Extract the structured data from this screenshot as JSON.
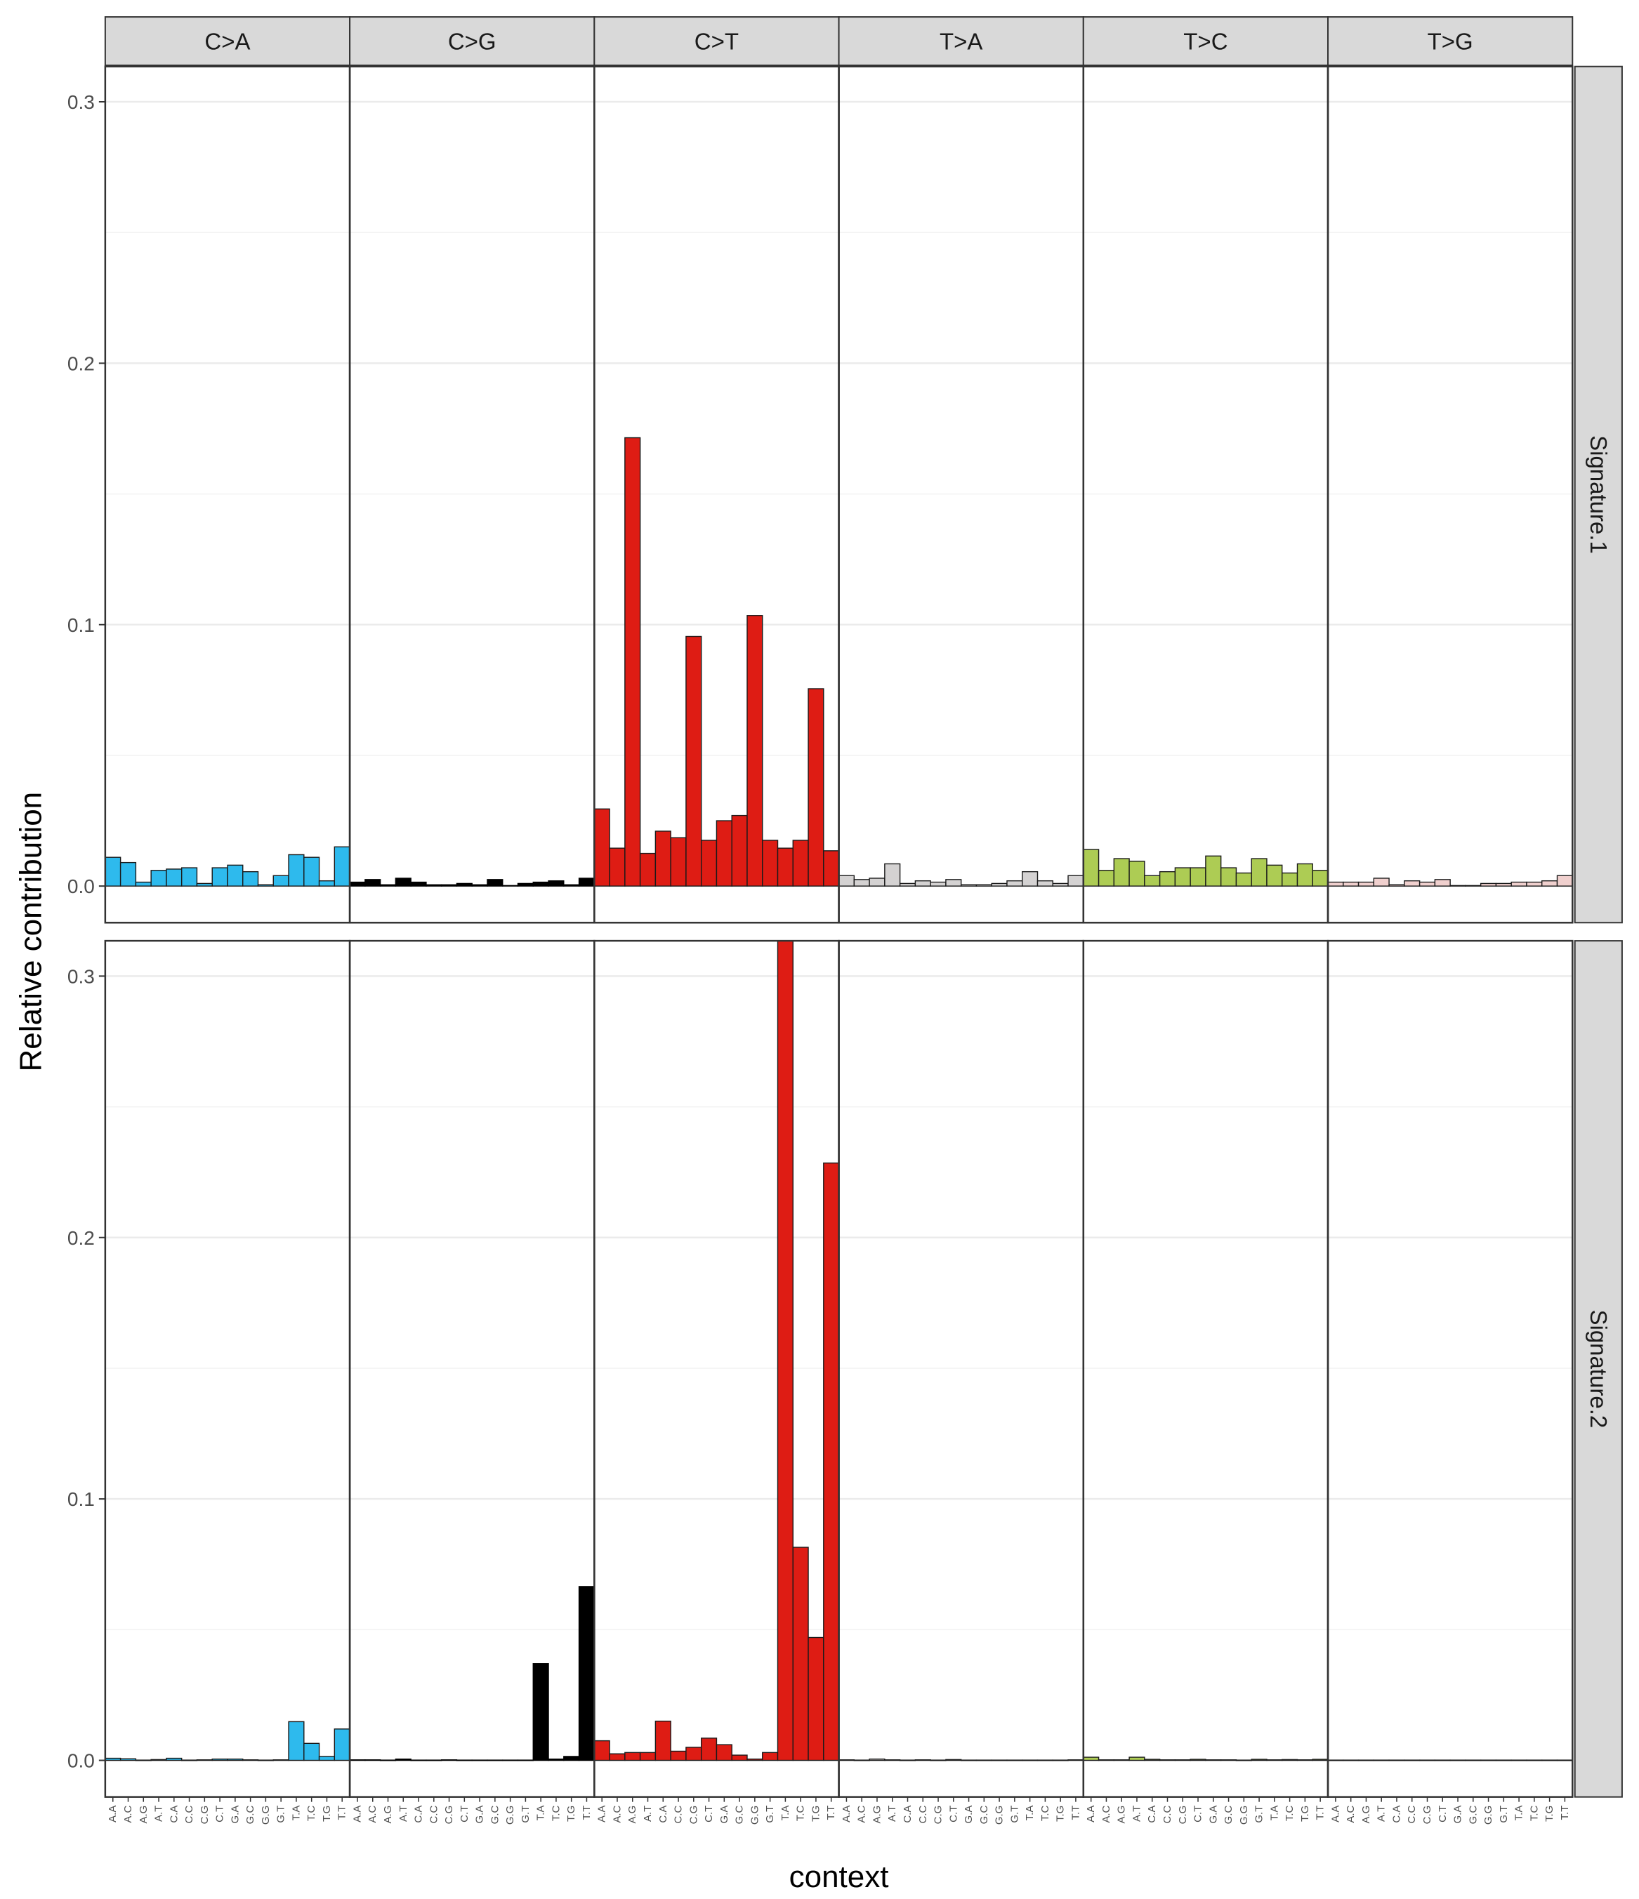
{
  "chart_data": {
    "type": "bar",
    "xlabel": "context",
    "ylabel": "Relative contribution",
    "ylim": [
      -0.014,
      0.3135
    ],
    "yticks": [
      0.0,
      0.1,
      0.2,
      0.3
    ],
    "ytick_labels": [
      "0.0",
      "0.1",
      "0.2",
      "0.3"
    ],
    "grid": true,
    "legend": "none",
    "facet_columns": [
      "C>A",
      "C>G",
      "C>T",
      "T>A",
      "T>C",
      "T>G"
    ],
    "facet_rows": [
      "Signature.1",
      "Signature.2"
    ],
    "facet_colors": {
      "C>A": "#2EBAED",
      "C>G": "#000000",
      "C>T": "#DE1C14",
      "T>A": "#D4D2D2",
      "T>C": "#ADCC54",
      "T>G": "#F0D0CE"
    },
    "categories": [
      "A.A",
      "A.C",
      "A.G",
      "A.T",
      "C.A",
      "C.C",
      "C.G",
      "C.T",
      "G.A",
      "G.C",
      "G.G",
      "G.T",
      "T.A",
      "T.C",
      "T.G",
      "T.T"
    ],
    "series": [
      {
        "name": "Signature.1",
        "facets": [
          {
            "mutation": "C>A",
            "values": [
              0.011,
              0.009,
              0.0015,
              0.006,
              0.0065,
              0.007,
              0.001,
              0.007,
              0.008,
              0.0055,
              0.0005,
              0.004,
              0.012,
              0.011,
              0.002,
              0.015
            ]
          },
          {
            "mutation": "C>G",
            "values": [
              0.0015,
              0.0025,
              0.0005,
              0.003,
              0.0015,
              0.0005,
              0.0005,
              0.001,
              0.0005,
              0.0025,
              0.0002,
              0.001,
              0.0015,
              0.002,
              0.0005,
              0.003
            ]
          },
          {
            "mutation": "C>T",
            "values": [
              0.0295,
              0.0145,
              0.1715,
              0.0125,
              0.021,
              0.0185,
              0.0955,
              0.0175,
              0.025,
              0.027,
              0.1035,
              0.0175,
              0.0145,
              0.0175,
              0.0755,
              0.0135
            ]
          },
          {
            "mutation": "T>A",
            "values": [
              0.004,
              0.0025,
              0.003,
              0.0085,
              0.001,
              0.002,
              0.0015,
              0.0025,
              0.0005,
              0.0005,
              0.001,
              0.002,
              0.0055,
              0.002,
              0.001,
              0.004
            ]
          },
          {
            "mutation": "T>C",
            "values": [
              0.014,
              0.006,
              0.0105,
              0.0095,
              0.004,
              0.0055,
              0.007,
              0.007,
              0.0115,
              0.007,
              0.005,
              0.0105,
              0.008,
              0.005,
              0.0085,
              0.006
            ]
          },
          {
            "mutation": "T>G",
            "values": [
              0.0015,
              0.0015,
              0.0015,
              0.003,
              0.0005,
              0.002,
              0.0015,
              0.0025,
              0.0002,
              0.0002,
              0.001,
              0.001,
              0.0015,
              0.0015,
              0.002,
              0.004
            ]
          }
        ]
      },
      {
        "name": "Signature.2",
        "facets": [
          {
            "mutation": "C>A",
            "values": [
              0.0008,
              0.0006,
              0.0001,
              0.0003,
              0.0008,
              0.0001,
              0.0002,
              0.0005,
              0.0005,
              0.0002,
              0.0001,
              0.0002,
              0.0148,
              0.0065,
              0.0015,
              0.012
            ]
          },
          {
            "mutation": "C>G",
            "values": [
              0.0002,
              0.0002,
              0.0001,
              0.0005,
              0.0001,
              0.0001,
              0.0002,
              0.0001,
              0.0001,
              0.0001,
              0.0001,
              0.0001,
              0.037,
              0.0005,
              0.0015,
              0.0665
            ]
          },
          {
            "mutation": "C>T",
            "values": [
              0.0075,
              0.0025,
              0.003,
              0.003,
              0.015,
              0.0035,
              0.005,
              0.0085,
              0.006,
              0.002,
              0.0005,
              0.003,
              0.3135,
              0.0815,
              0.047,
              0.2285
            ]
          },
          {
            "mutation": "T>A",
            "values": [
              0.0002,
              0.0001,
              0.0005,
              0.0002,
              0.0001,
              0.0002,
              0.0001,
              0.0003,
              0.0001,
              0.0001,
              0.0001,
              0.0001,
              0.0001,
              0.0001,
              0.0001,
              0.0002
            ]
          },
          {
            "mutation": "T>C",
            "values": [
              0.0012,
              0.0002,
              0.0002,
              0.0012,
              0.0004,
              0.0002,
              0.0002,
              0.0004,
              0.0002,
              0.0002,
              0.0001,
              0.0004,
              0.0002,
              0.0003,
              0.0002,
              0.0004
            ]
          },
          {
            "mutation": "T>G",
            "values": [
              0.0001,
              0.0001,
              0.0001,
              0.0001,
              0.0001,
              0.0001,
              0.0001,
              0.0001,
              0.0001,
              0.0001,
              0.0001,
              0.0001,
              0.0001,
              0.0001,
              0.0001,
              0.0001
            ]
          }
        ]
      }
    ]
  }
}
